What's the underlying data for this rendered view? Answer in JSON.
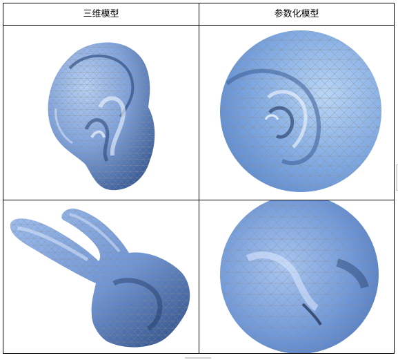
{
  "table": {
    "headers": [
      "三维模型",
      "参数化模型"
    ]
  },
  "colors": {
    "mesh_blue": "#6b93d6",
    "mesh_light": "#a8c8f0",
    "mesh_dark": "#2f4f86",
    "wire": "#8a8a8a"
  }
}
